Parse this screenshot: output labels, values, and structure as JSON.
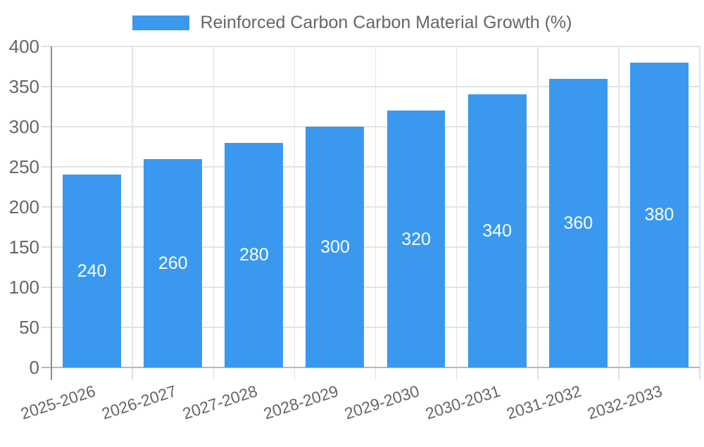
{
  "chart_data": {
    "type": "bar",
    "title": "Reinforced Carbon Carbon Material Growth (%)",
    "categories": [
      "2025-2026",
      "2026-2027",
      "2027-2028",
      "2028-2029",
      "2029-2030",
      "2030-2031",
      "2031-2032",
      "2032-2033"
    ],
    "series": [
      {
        "name": "Reinforced Carbon Carbon Material Growth (%)",
        "color": "#3A99EE",
        "values": [
          240,
          260,
          280,
          300,
          320,
          340,
          360,
          380
        ]
      }
    ],
    "bar_labels_shown": true,
    "bar_label_color": "#FFFFFF",
    "xlabel": "",
    "ylabel": "",
    "ylim": [
      0,
      400
    ],
    "yticks": [
      0,
      50,
      100,
      150,
      200,
      250,
      300,
      350,
      400
    ],
    "grid": true,
    "legend_position": "top",
    "x_label_rotation_deg": -18,
    "colors": {
      "axis_text": "#666666",
      "grid_line": "#E3E3E3",
      "tick_line": "#E0E0E0",
      "y_axis_line": "#8C8C8C",
      "x_axis_line": "#B8B8B8",
      "background": "#FFFFFF"
    }
  }
}
